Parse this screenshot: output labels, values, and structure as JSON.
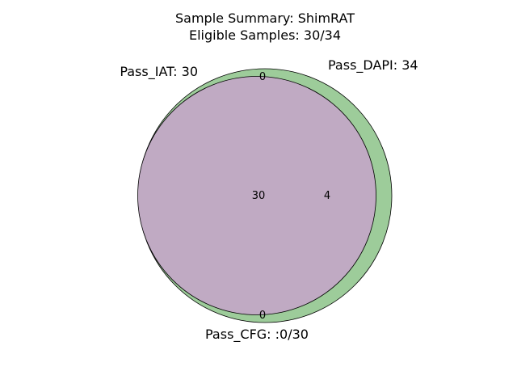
{
  "title": {
    "line1": "Sample Summary: ShimRAT",
    "line2": "Eligible Samples: 30/34"
  },
  "sets": {
    "pass_iat": {
      "label": "Pass_IAT: 30",
      "color": "#c0aac3"
    },
    "pass_dapi": {
      "label": "Pass_DAPI: 34",
      "color": "#9dcc9a"
    },
    "pass_cfg": {
      "label": "Pass_CFG: :0/30"
    }
  },
  "regions": {
    "top": "0",
    "intersection": "30",
    "dapi_only": "4",
    "bottom": "0"
  }
}
